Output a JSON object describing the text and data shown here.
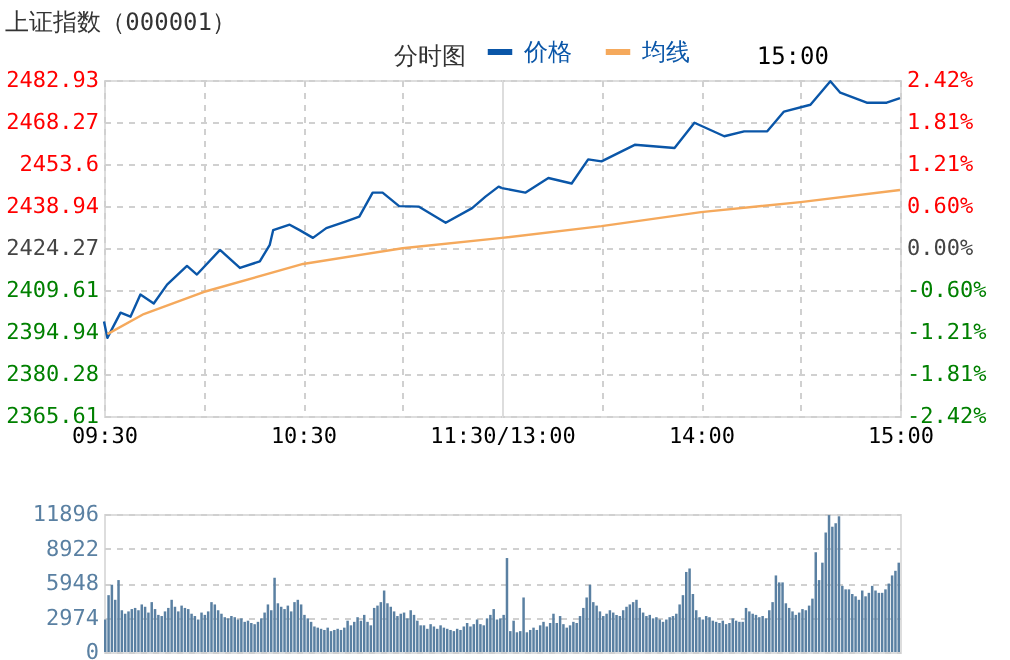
{
  "chart_data": [
    {
      "type": "line",
      "title": "上证指数（000001）",
      "subtitle": "分时图",
      "legend": "top",
      "grid": true,
      "line_style": "solid",
      "xlim": [
        9.5,
        11.5
      ],
      "xticks": [
        {
          "value": 9.5,
          "label": "09:30"
        },
        {
          "value": 10,
          "label": null
        },
        {
          "value": 10.5,
          "label": "10:30"
        },
        {
          "value": 11,
          "label": null
        },
        {
          "value": 11.5,
          "label": "11:30/13:00"
        }
      ],
      "ylim": [
        2365.61,
        2482.93
      ],
      "yticks": [
        2365.61,
        2380.28,
        2394.94,
        2409.61,
        2424.27,
        2438.94,
        2453.6,
        2468.27,
        2482.93
      ],
      "series": [
        {
          "name": "价格",
          "color": "#0a56a8",
          "x": [
            9.5,
            9.517,
            9.583,
            9.633,
            9.683,
            9.75,
            9.817,
            9.917,
            9.967,
            10.083,
            10.183,
            10.283,
            10.333,
            10.35,
            10.433,
            10.483,
            10.55,
            10.617,
            10.717,
            10.783,
            10.85,
            10.9,
            10.983,
            11.083,
            11.217,
            11.35,
            11.417,
            11.483,
            11.5
          ],
          "values": [
            2398.6,
            2392.9,
            2401.7,
            2400.3,
            2408.0,
            2404.9,
            2411.5,
            2418.0,
            2415.0,
            2423.6,
            2417.3,
            2419.6,
            2425.4,
            2430.5,
            2432.4,
            2430.5,
            2427.8,
            2431.2,
            2433.6,
            2435.2,
            2443.6,
            2443.6,
            2438.9,
            2438.7,
            2433.1,
            2438.2,
            2442.2,
            2445.7,
            2445.2
          ]
        },
        {
          "name": "均线",
          "color": "#f5a95c",
          "x": [
            9.517,
            9.7,
            10,
            10.5,
            11,
            11.5
          ],
          "values": [
            2394.2,
            2401.2,
            2408.9,
            2418.7,
            2424.2,
            2427.8
          ]
        }
      ]
    },
    {
      "type": "line",
      "annotations": [
        "15:00"
      ],
      "grid": true,
      "line_style": "solid",
      "tick_labels": "xy2",
      "xlim": [
        13,
        15
      ],
      "xticks": [
        {
          "value": 13.5,
          "label": null
        },
        {
          "value": 14,
          "label": "14:00"
        },
        {
          "value": 14.5,
          "label": null
        },
        {
          "value": 15,
          "label": "15:00"
        }
      ],
      "ylim": [
        2365.61,
        2482.93
      ],
      "y2lim": [
        -2.42,
        2.42
      ],
      "y2ticks": [
        {
          "value": -2.42,
          "label": "-2.42%"
        },
        {
          "value": -1.81,
          "label": "-1.81%"
        },
        {
          "value": -1.21,
          "label": "-1.21%"
        },
        {
          "value": -0.6,
          "label": "-0.60%"
        },
        {
          "value": 0,
          "label": "0.00%"
        },
        {
          "value": 0.6,
          "label": "0.60%"
        },
        {
          "value": 1.21,
          "label": "1.21%"
        },
        {
          "value": 1.81,
          "label": "1.81%"
        },
        {
          "value": 2.42,
          "label": "2.42%"
        }
      ],
      "series": [
        {
          "color": "#0a56a8",
          "x": [
            13,
            13.117,
            13.233,
            13.35,
            13.433,
            13.5,
            13.667,
            13.867,
            13.967,
            14.117,
            14.217,
            14.333,
            14.417,
            14.55,
            14.65,
            14.7,
            14.833,
            14.933,
            15
          ],
          "values": [
            2445.2,
            2443.6,
            2448.7,
            2446.8,
            2455.2,
            2454.5,
            2460.3,
            2459.2,
            2468.0,
            2463.3,
            2465.0,
            2465.0,
            2471.9,
            2474.3,
            2482.5,
            2478.5,
            2475.0,
            2475.0,
            2476.6
          ]
        },
        {
          "color": "#f5a95c",
          "x": [
            13,
            13.5,
            14,
            14.5,
            15
          ],
          "values": [
            2427.8,
            2431.9,
            2436.8,
            2440.3,
            2444.5
          ]
        }
      ]
    },
    {
      "type": "bar",
      "grid": "y",
      "tick_labels": "y",
      "color": "#5a80a2",
      "categories": [
        null,
        null,
        null,
        null,
        null,
        null,
        null,
        null,
        null,
        null,
        null,
        null,
        null,
        null,
        null,
        null,
        null,
        null,
        null,
        null,
        null,
        null,
        null,
        null,
        null,
        null,
        null,
        null,
        null,
        null,
        null,
        null,
        null,
        null,
        null,
        null,
        null,
        null,
        null,
        null,
        null,
        null,
        null,
        null,
        null,
        null,
        null,
        null,
        null,
        null,
        null,
        null,
        null,
        null,
        null,
        null,
        null,
        null,
        null,
        null,
        null,
        null,
        null,
        null,
        null,
        null,
        null,
        null,
        null,
        null,
        null,
        null,
        null,
        null,
        null,
        null,
        null,
        null,
        null,
        null,
        null,
        null,
        null,
        null,
        null,
        null,
        null,
        null,
        null,
        null,
        null,
        null,
        null,
        null,
        null,
        null,
        null,
        null,
        null,
        null,
        null,
        null,
        null,
        null,
        null,
        null,
        null,
        null,
        null,
        null,
        null,
        null,
        null,
        null,
        null,
        null,
        null,
        null,
        null,
        null,
        null,
        null,
        null,
        null,
        null,
        null,
        null,
        null,
        null,
        null,
        null,
        null,
        null,
        null,
        null,
        null,
        null,
        null,
        null,
        null,
        null,
        null,
        null,
        null,
        null,
        null,
        null,
        null,
        null,
        null,
        null,
        null,
        null,
        null,
        null,
        null,
        null,
        null,
        null,
        null,
        null,
        null,
        null,
        null,
        null,
        null,
        null,
        null,
        null,
        null,
        null,
        null,
        null,
        null,
        null,
        null,
        null,
        null,
        null,
        null,
        null,
        null,
        null,
        null,
        null,
        null,
        null,
        null,
        null,
        null,
        null,
        null,
        null,
        null,
        null,
        null,
        null,
        null,
        null,
        null,
        null,
        null,
        null,
        null,
        null,
        null,
        null,
        null,
        null,
        null,
        null,
        null,
        null,
        null,
        null,
        null,
        null,
        null,
        null,
        null,
        null,
        null,
        null,
        null,
        null,
        null,
        null,
        null,
        null,
        null,
        null,
        null,
        null,
        null,
        null,
        null,
        null,
        null,
        null,
        null
      ],
      "ylim": [
        0,
        11896
      ],
      "yticks": [
        0,
        2974,
        5948,
        8922,
        11896
      ],
      "values": [
        2800,
        4900,
        5800,
        4500,
        6200,
        3600,
        3300,
        3500,
        3700,
        3800,
        3600,
        4100,
        3900,
        3400,
        4300,
        3700,
        3200,
        3100,
        3500,
        3800,
        4500,
        3900,
        3500,
        4000,
        3800,
        3700,
        3300,
        3100,
        2800,
        3400,
        3200,
        3500,
        4300,
        4100,
        3600,
        3300,
        3000,
        2900,
        3100,
        3000,
        2800,
        2900,
        2600,
        2700,
        2500,
        2400,
        2600,
        2900,
        3400,
        4100,
        3600,
        6400,
        4200,
        3900,
        3700,
        4000,
        3500,
        4300,
        4500,
        4100,
        3200,
        2900,
        2600,
        2200,
        2100,
        2000,
        1900,
        2100,
        1800,
        1900,
        2000,
        1900,
        2100,
        2700,
        2300,
        2600,
        3000,
        2700,
        3200,
        2600,
        2300,
        3800,
        4000,
        4300,
        5300,
        4200,
        3900,
        3500,
        3100,
        3300,
        3400,
        2900,
        3600,
        3200,
        2700,
        2300,
        2300,
        2000,
        2400,
        2200,
        2000,
        2300,
        2100,
        2000,
        1900,
        1800,
        2000,
        1900,
        2200,
        2500,
        2200,
        2400,
        2800,
        2400,
        2300,
        2900,
        3200,
        3700,
        2800,
        2900,
        3200,
        8100,
        1800,
        2700,
        1700,
        1800,
        4700,
        1700,
        1900,
        2100,
        1900,
        2300,
        2600,
        2200,
        2500,
        3300,
        2500,
        3100,
        2400,
        2100,
        2300,
        2600,
        2500,
        3100,
        3800,
        4700,
        5800,
        4300,
        4000,
        3500,
        3100,
        3300,
        3600,
        3400,
        3200,
        3100,
        3600,
        3900,
        4100,
        4300,
        4500,
        3800,
        3400,
        3100,
        3200,
        2900,
        3000,
        2800,
        2600,
        2800,
        3000,
        3100,
        3300,
        4100,
        4900,
        6900,
        7200,
        5000,
        3600,
        3000,
        2800,
        3100,
        3000,
        2700,
        2600,
        2500,
        2700,
        2400,
        2500,
        2900,
        2700,
        2600,
        2600,
        3800,
        3500,
        3300,
        3200,
        3000,
        3100,
        2900,
        3600,
        4300,
        6600,
        6000,
        6000,
        4200,
        3800,
        3500,
        3200,
        3400,
        3700,
        3600,
        4000,
        4600,
        8600,
        6200,
        7700,
        10300,
        11800,
        10800,
        11100,
        11700,
        5700,
        5400,
        5400,
        5000,
        4800,
        4500,
        5300,
        4800,
        5100,
        5700,
        5300,
        5100,
        5100,
        5400,
        5900,
        6600,
        7000,
        7700
      ]
    }
  ]
}
